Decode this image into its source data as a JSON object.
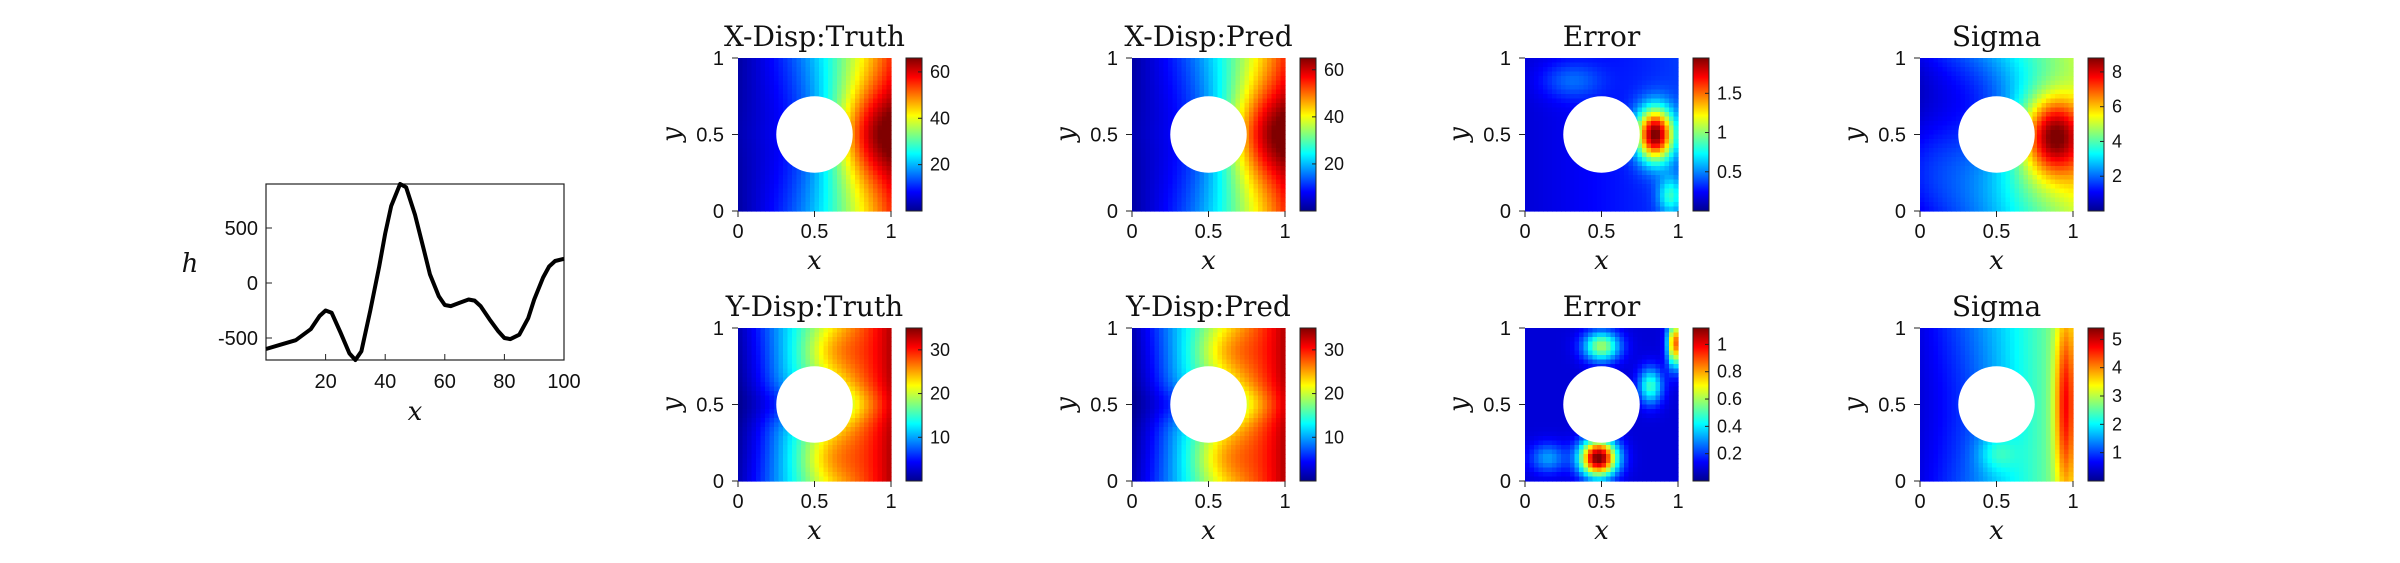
{
  "chart_data": [
    {
      "id": "input-function",
      "type": "line",
      "title": "",
      "xlabel": "x",
      "ylabel": "h",
      "xlim": [
        0,
        100
      ],
      "ylim": [
        -700,
        900
      ],
      "xticks": [
        "20",
        "40",
        "60",
        "80",
        "100"
      ],
      "yticks": [
        "500",
        "0",
        "-500"
      ],
      "grid": false,
      "color": "#000000",
      "series": [
        {
          "x": [
            0,
            5,
            10,
            15,
            18,
            20,
            22,
            25,
            28,
            30,
            32,
            35,
            38,
            40,
            42,
            45,
            47,
            50,
            53,
            55,
            58,
            60,
            62,
            65,
            68,
            70,
            72,
            75,
            78,
            80,
            82,
            85,
            88,
            90,
            93,
            95,
            97,
            100
          ],
          "values": [
            -600,
            -560,
            -520,
            -420,
            -300,
            -250,
            -270,
            -450,
            -640,
            -700,
            -620,
            -250,
            150,
            450,
            700,
            900,
            870,
            620,
            300,
            80,
            -120,
            -200,
            -210,
            -180,
            -150,
            -160,
            -210,
            -330,
            -440,
            -500,
            -510,
            -470,
            -320,
            -150,
            50,
            150,
            200,
            220
          ]
        }
      ]
    },
    {
      "id": "x-disp-truth",
      "type": "heatmap",
      "title": "X-Disp:Truth",
      "xlabel": "x",
      "ylabel": "y",
      "xlim": [
        0,
        1
      ],
      "ylim": [
        0,
        1
      ],
      "xticks": [
        "0",
        "0.5",
        "1"
      ],
      "yticks": [
        "0",
        "0.5",
        "1"
      ],
      "hole": {
        "cx": 0.5,
        "cy": 0.5,
        "r": 0.25
      },
      "colorbar": {
        "min": 0,
        "max": 66,
        "ticks": [
          "20",
          "40",
          "60"
        ],
        "tick_values": [
          20,
          40,
          60
        ]
      },
      "field": "xdisp"
    },
    {
      "id": "x-disp-pred",
      "type": "heatmap",
      "title": "X-Disp:Pred",
      "xlabel": "x",
      "ylabel": "y",
      "xlim": [
        0,
        1
      ],
      "ylim": [
        0,
        1
      ],
      "xticks": [
        "0",
        "0.5",
        "1"
      ],
      "yticks": [
        "0",
        "0.5",
        "1"
      ],
      "hole": {
        "cx": 0.5,
        "cy": 0.5,
        "r": 0.25
      },
      "colorbar": {
        "min": 0,
        "max": 65,
        "ticks": [
          "20",
          "40",
          "60"
        ],
        "tick_values": [
          20,
          40,
          60
        ]
      },
      "field": "xdisp"
    },
    {
      "id": "x-error",
      "type": "heatmap",
      "title": "Error",
      "xlabel": "x",
      "ylabel": "y",
      "xlim": [
        0,
        1
      ],
      "ylim": [
        0,
        1
      ],
      "xticks": [
        "0",
        "0.5",
        "1"
      ],
      "yticks": [
        "0",
        "0.5",
        "1"
      ],
      "hole": {
        "cx": 0.5,
        "cy": 0.5,
        "r": 0.25
      },
      "colorbar": {
        "min": 0,
        "max": 1.95,
        "ticks": [
          "0.5",
          "1",
          "1.5"
        ],
        "tick_values": [
          0.5,
          1,
          1.5
        ]
      },
      "field": "xerr"
    },
    {
      "id": "x-sigma",
      "type": "heatmap",
      "title": "Sigma",
      "xlabel": "x",
      "ylabel": "y",
      "xlim": [
        0,
        1
      ],
      "ylim": [
        0,
        1
      ],
      "xticks": [
        "0",
        "0.5",
        "1"
      ],
      "yticks": [
        "0",
        "0.5",
        "1"
      ],
      "hole": {
        "cx": 0.5,
        "cy": 0.5,
        "r": 0.25
      },
      "colorbar": {
        "min": 0,
        "max": 8.8,
        "ticks": [
          "2",
          "4",
          "6",
          "8"
        ],
        "tick_values": [
          2,
          4,
          6,
          8
        ]
      },
      "field": "xsig"
    },
    {
      "id": "y-disp-truth",
      "type": "heatmap",
      "title": "Y-Disp:Truth",
      "xlabel": "x",
      "ylabel": "y",
      "xlim": [
        0,
        1
      ],
      "ylim": [
        0,
        1
      ],
      "xticks": [
        "0",
        "0.5",
        "1"
      ],
      "yticks": [
        "0",
        "0.5",
        "1"
      ],
      "hole": {
        "cx": 0.5,
        "cy": 0.5,
        "r": 0.25
      },
      "colorbar": {
        "min": 0,
        "max": 35,
        "ticks": [
          "10",
          "20",
          "30"
        ],
        "tick_values": [
          10,
          20,
          30
        ]
      },
      "field": "ydisp"
    },
    {
      "id": "y-disp-pred",
      "type": "heatmap",
      "title": "Y-Disp:Pred",
      "xlabel": "x",
      "ylabel": "y",
      "xlim": [
        0,
        1
      ],
      "ylim": [
        0,
        1
      ],
      "xticks": [
        "0",
        "0.5",
        "1"
      ],
      "yticks": [
        "0",
        "0.5",
        "1"
      ],
      "hole": {
        "cx": 0.5,
        "cy": 0.5,
        "r": 0.25
      },
      "colorbar": {
        "min": 0,
        "max": 35,
        "ticks": [
          "10",
          "20",
          "30"
        ],
        "tick_values": [
          10,
          20,
          30
        ]
      },
      "field": "ydisp"
    },
    {
      "id": "y-error",
      "type": "heatmap",
      "title": "Error",
      "xlabel": "x",
      "ylabel": "y",
      "xlim": [
        0,
        1
      ],
      "ylim": [
        0,
        1
      ],
      "xticks": [
        "0",
        "0.5",
        "1"
      ],
      "yticks": [
        "0",
        "0.5",
        "1"
      ],
      "hole": {
        "cx": 0.5,
        "cy": 0.5,
        "r": 0.25
      },
      "colorbar": {
        "min": 0,
        "max": 1.12,
        "ticks": [
          "0.2",
          "0.4",
          "0.6",
          "0.8",
          "1"
        ],
        "tick_values": [
          0.2,
          0.4,
          0.6,
          0.8,
          1
        ]
      },
      "field": "yerr"
    },
    {
      "id": "y-sigma",
      "type": "heatmap",
      "title": "Sigma",
      "xlabel": "x",
      "ylabel": "y",
      "xlim": [
        0,
        1
      ],
      "ylim": [
        0,
        1
      ],
      "xticks": [
        "0",
        "0.5",
        "1"
      ],
      "yticks": [
        "0",
        "0.5",
        "1"
      ],
      "hole": {
        "cx": 0.5,
        "cy": 0.5,
        "r": 0.25
      },
      "colorbar": {
        "min": 0,
        "max": 5.4,
        "ticks": [
          "1",
          "2",
          "3",
          "4",
          "5"
        ],
        "tick_values": [
          1,
          2,
          3,
          4,
          5
        ]
      },
      "field": "ysig"
    }
  ]
}
